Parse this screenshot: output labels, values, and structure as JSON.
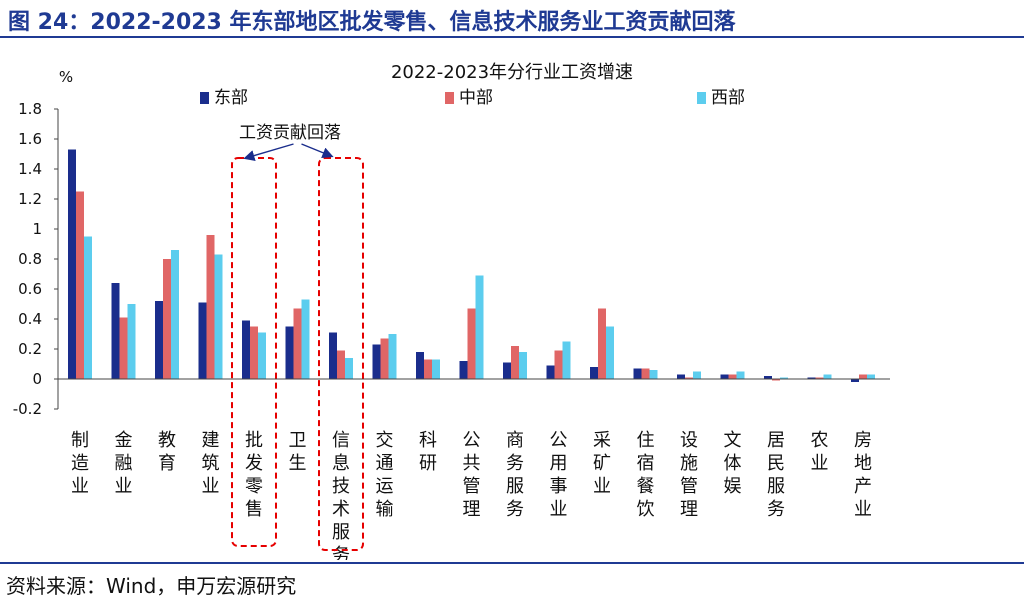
{
  "figure": {
    "title": "图 24：2022-2023 年东部地区批发零售、信息技术服务业工资贡献回落",
    "source": "资料来源：Wind，申万宏源研究"
  },
  "chart_data": {
    "type": "bar",
    "title": "2022-2023年分行业工资增速",
    "ylabel": "%",
    "ylim": [
      -0.2,
      1.8
    ],
    "yticks": [
      -0.2,
      0,
      0.2,
      0.4,
      0.6,
      0.8,
      1,
      1.2,
      1.4,
      1.6,
      1.8
    ],
    "ytick_labels": [
      "-0.2",
      "0",
      "0.2",
      "0.4",
      "0.6",
      "0.8",
      "1",
      "1.2",
      "1.4",
      "1.6",
      "1.8"
    ],
    "grid": false,
    "legend_position": "top",
    "categories": [
      "制造业",
      "金融业",
      "教育",
      "建筑业",
      "批发零售",
      "卫生",
      "信息技术服务",
      "交通运输",
      "科研",
      "公共管理",
      "商务服务",
      "公用事业",
      "采矿业",
      "住宿餐饮",
      "设施管理",
      "文体娱",
      "居民服务",
      "农业",
      "房地产业"
    ],
    "series": [
      {
        "name": "东部",
        "color": "#1a2d8c",
        "values": [
          1.53,
          0.64,
          0.52,
          0.51,
          0.39,
          0.35,
          0.31,
          0.23,
          0.18,
          0.12,
          0.11,
          0.09,
          0.08,
          0.07,
          0.03,
          0.03,
          0.02,
          0.01,
          -0.02
        ]
      },
      {
        "name": "中部",
        "color": "#e06666",
        "values": [
          1.25,
          0.41,
          0.8,
          0.96,
          0.35,
          0.47,
          0.19,
          0.27,
          0.13,
          0.47,
          0.22,
          0.19,
          0.47,
          0.07,
          0.01,
          0.03,
          -0.01,
          0.01,
          0.03
        ]
      },
      {
        "name": "西部",
        "color": "#5ccdee",
        "values": [
          0.95,
          0.5,
          0.86,
          0.83,
          0.31,
          0.53,
          0.14,
          0.3,
          0.13,
          0.69,
          0.18,
          0.25,
          0.35,
          0.06,
          0.05,
          0.05,
          0.01,
          0.03,
          0.03
        ]
      }
    ],
    "annotation": {
      "text": "工资贡献回落",
      "highlight_categories": [
        "批发零售",
        "信息技术服务"
      ],
      "box_color": "#e60000",
      "arrow_color": "#1a2d8c"
    }
  }
}
